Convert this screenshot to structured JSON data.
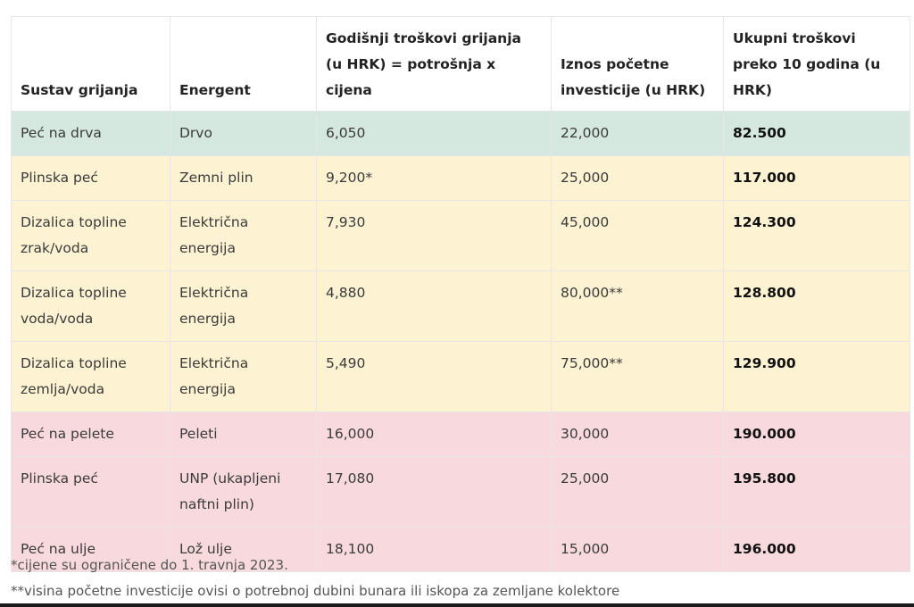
{
  "table": {
    "header": [
      "Sustav grijanja",
      "Energent",
      "Godišnji troškovi grijanja (u HRK) = potrošnja x cijena",
      "Iznos početne investicije (u HRK)",
      "Ukupni troškovi preko 10 godina (u HRK)"
    ],
    "rows": [
      [
        "Peć na drva",
        "Drvo",
        "6,050",
        "22,000",
        "82.500"
      ],
      [
        "Plinska peć",
        "Zemni plin",
        "9,200*",
        "25,000",
        "117.000"
      ],
      [
        "Dizalica topline zrak/voda",
        "Električna energija",
        "7,930",
        "45,000",
        "124.300"
      ],
      [
        "Dizalica topline voda/voda",
        "Električna energija",
        "4,880",
        "80,000**",
        "128.800"
      ],
      [
        "Dizalica topline zemlja/voda",
        "Električna energija",
        "5,490",
        "75,000**",
        "129.900"
      ],
      [
        "Peć na pelete",
        "Peleti",
        "16,000",
        "30,000",
        "190.000"
      ],
      [
        "Plinska peć",
        "UNP (ukapljeni naftni plin)",
        "17,080",
        "25,000",
        "195.800"
      ],
      [
        "Peć na ulje",
        "Lož ulje",
        "18,100",
        "15,000",
        "196.000"
      ]
    ],
    "row_colors": [
      "#d4e8e0",
      "#fdf3d3",
      "#fdf3d3",
      "#fdf3d3",
      "#fdf3d3",
      "#f8dade",
      "#f8dade",
      "#f8dade"
    ]
  },
  "footnotes": [
    "*cijene su ograničene do 1. travnja 2023.",
    "**visina početne investicije ovisi o potrebnoj dubini bunara ili iskopa za zemljane kolektore"
  ]
}
